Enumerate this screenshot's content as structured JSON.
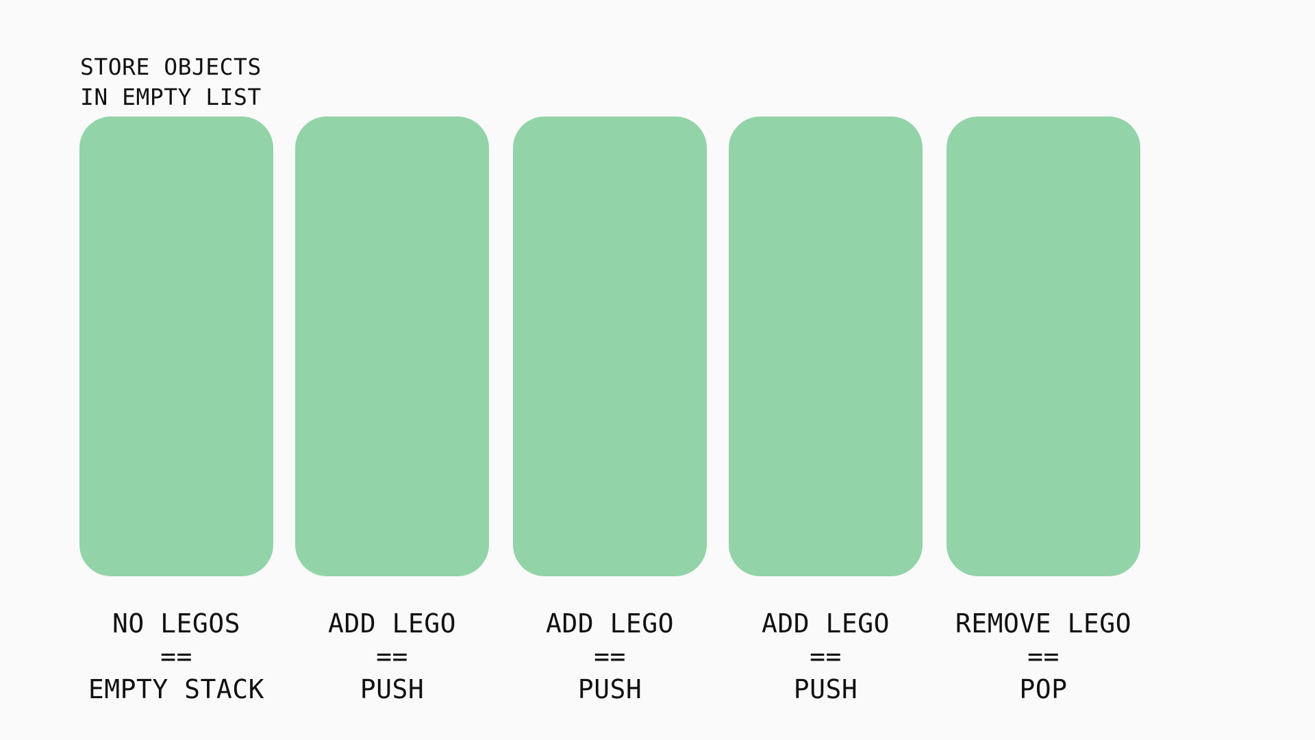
{
  "heading": {
    "line1": "STORE OBJECTS",
    "line2": "IN EMPTY LIST"
  },
  "colors": {
    "background": "#fafafa",
    "panel_fill": "#93d3a8",
    "text": "#111111"
  },
  "steps": [
    {
      "line1": "NO LEGOS",
      "line2": "==",
      "line3": "EMPTY STACK"
    },
    {
      "line1": "ADD LEGO",
      "line2": "==",
      "line3": "PUSH"
    },
    {
      "line1": "ADD LEGO",
      "line2": "==",
      "line3": "PUSH"
    },
    {
      "line1": "ADD LEGO",
      "line2": "==",
      "line3": "PUSH"
    },
    {
      "line1": "REMOVE LEGO",
      "line2": "==",
      "line3": "POP"
    }
  ]
}
